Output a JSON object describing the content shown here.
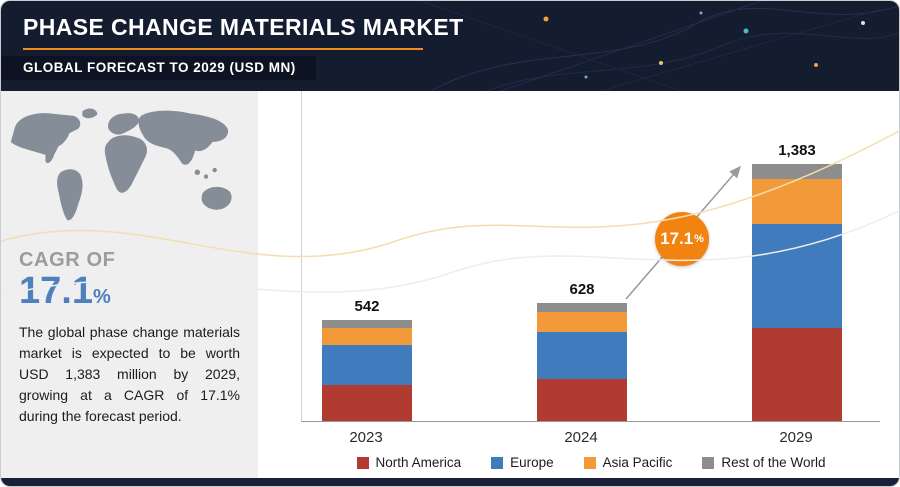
{
  "header": {
    "title": "PHASE CHANGE MATERIALS MARKET",
    "subtitle": "GLOBAL FORECAST TO 2029 (USD MN)"
  },
  "sidebar": {
    "cagr_label": "CAGR OF",
    "cagr_value": "17.1",
    "cagr_unit": "%",
    "description": "The global phase change materials market is expected to be worth USD 1,383 million by 2029, growing at a CAGR of 17.1% during the forecast period."
  },
  "growth_badge": {
    "value": "17.1",
    "unit": "%"
  },
  "colors": {
    "north_america": "#b13b31",
    "europe": "#3f7bbd",
    "asia_pacific": "#f29a3a",
    "rest_of_world": "#8d8d8d",
    "accent_orange": "#f28c1e",
    "header_bg": "#141c30",
    "cagr_blue": "#4d80bd"
  },
  "chart_data": {
    "type": "bar",
    "subtype": "stacked",
    "title": "Phase Change Materials Market, Global Forecast to 2029 (USD MN)",
    "categories": [
      "2023",
      "2024",
      "2029"
    ],
    "series": [
      {
        "name": "North America",
        "color": "#b13b31",
        "values": [
          195,
          225,
          500
        ]
      },
      {
        "name": "Europe",
        "color": "#3f7bbd",
        "values": [
          215,
          250,
          560
        ]
      },
      {
        "name": "Asia Pacific",
        "color": "#f29a3a",
        "values": [
          90,
          105,
          240
        ]
      },
      {
        "name": "Rest of the World",
        "color": "#8d8d8d",
        "values": [
          42,
          48,
          83
        ]
      }
    ],
    "totals": [
      542,
      628,
      1383
    ],
    "total_labels": [
      "542",
      "628",
      "1,383"
    ],
    "growth_annotation": "17.1%",
    "ylabel": "USD MN",
    "ylim": [
      0,
      1450
    ],
    "grid": false,
    "legend_position": "bottom"
  }
}
